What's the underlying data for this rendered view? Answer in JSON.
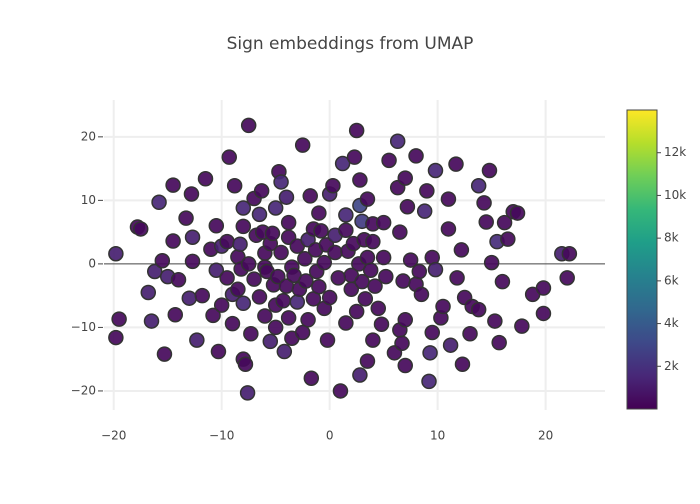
{
  "chart_data": {
    "type": "scatter",
    "title": "Sign embeddings from UMAP",
    "x": [
      -19.8,
      -19.5,
      -19.8,
      -17.8,
      -17.5,
      -16.8,
      -16.5,
      -16.2,
      -15.8,
      -15.5,
      -15.3,
      -15,
      -14.5,
      -14.5,
      -14.3,
      -14,
      -13.3,
      -13,
      -12.8,
      -12.7,
      -12.7,
      -12.3,
      -11.8,
      -11.5,
      -11,
      -10.8,
      -10.5,
      -10.5,
      -10.3,
      -10,
      -10,
      -9.5,
      -9.3,
      -9.5,
      -9,
      -9,
      -8.8,
      -8.5,
      -8.5,
      -8.3,
      -8.2,
      -8,
      -8,
      -8,
      -8,
      -7.8,
      -7.6,
      -7.5,
      -7.5,
      -7.3,
      -7,
      -7,
      -6.8,
      -6.5,
      -6.3,
      -6.5,
      -6.2,
      -6,
      -6,
      -6,
      -5.8,
      -5.5,
      -5.5,
      -5.3,
      -5.2,
      -5,
      -5,
      -5,
      -4.8,
      -4.7,
      -4.5,
      -4.5,
      -4.3,
      -4.2,
      -4,
      -4,
      -3.8,
      -3.8,
      -3.8,
      -3.5,
      -3.5,
      -3.3,
      -3,
      -3,
      -2.8,
      -2.5,
      -2.5,
      -2.3,
      -2.2,
      -2,
      -2,
      -1.8,
      -1.7,
      -1.5,
      -1.5,
      -1.3,
      -1.2,
      -1,
      -1,
      -0.8,
      -0.5,
      -0.5,
      -0.3,
      -0.2,
      0,
      0,
      0.3,
      0.5,
      0.5,
      0.8,
      1,
      1.2,
      1.5,
      1.5,
      1.5,
      1.7,
      2,
      2,
      2.2,
      2.3,
      2.5,
      2.5,
      2.7,
      2.8,
      2.8,
      2.8,
      3,
      3,
      3.2,
      3.3,
      3.5,
      3.5,
      3.5,
      3.8,
      4,
      4,
      4,
      4.2,
      4.5,
      4.8,
      5,
      5,
      5.2,
      5.5,
      6,
      6.3,
      6.3,
      6.5,
      6.5,
      6.7,
      6.8,
      7,
      7,
      7,
      7.2,
      7.5,
      8,
      8,
      8.3,
      8.5,
      8.8,
      9,
      9.2,
      9.3,
      9.5,
      9.5,
      9.8,
      9.8,
      10.3,
      10.5,
      11,
      11,
      11.2,
      11.7,
      11.8,
      12.2,
      12.3,
      12.5,
      13,
      13.2,
      13.8,
      13.8,
      14.3,
      14.5,
      14.8,
      15,
      15.3,
      15.5,
      15.7,
      16,
      16.2,
      16.5,
      17,
      17.4,
      17.8,
      18.8,
      19.8,
      19.8,
      21.5,
      22.2,
      22
    ],
    "values": [
      1.6,
      -8.7,
      -11.6,
      5.8,
      5.5,
      -4.5,
      -9,
      -1.2,
      9.7,
      0.5,
      -14.2,
      -2,
      12.4,
      3.6,
      -8,
      -2.5,
      7.2,
      -5.4,
      11,
      4.2,
      0.4,
      -12,
      -5,
      13.4,
      2.3,
      -8.1,
      6,
      -1,
      -13.8,
      2.8,
      -6.5,
      3.5,
      16.8,
      -2.2,
      -9.4,
      -4.8,
      12.3,
      -4,
      1.1,
      3.1,
      -0.8,
      8.8,
      5.9,
      -6.2,
      -15,
      -15.8,
      -20.3,
      21.8,
      0,
      -11,
      -2.4,
      10.3,
      4.5,
      7.8,
      11.5,
      -5.2,
      5,
      -8.2,
      1.7,
      -0.5,
      -1.2,
      -12.2,
      3.2,
      4.8,
      -3.3,
      -6.5,
      -10,
      8.8,
      -2,
      14.5,
      12.9,
      1.8,
      -5.8,
      -13.8,
      10.5,
      -3.5,
      6.5,
      4.2,
      -8.5,
      -0.5,
      -11.7,
      -1.8,
      2.8,
      -6,
      -4,
      18.7,
      -10.8,
      0.8,
      -2.7,
      3.8,
      -8.8,
      10.7,
      -18,
      5.5,
      -5.5,
      2.2,
      -1.2,
      -3.6,
      8,
      5.2,
      -7,
      0.2,
      3,
      -12,
      -5.3,
      11,
      12.3,
      1.8,
      4.5,
      -2.2,
      -20,
      15.8,
      7.7,
      5.3,
      -9.3,
      2,
      -4,
      -1.8,
      3.2,
      16.8,
      21,
      -7.5,
      0,
      13.2,
      -17.5,
      9.2,
      6.7,
      -2.8,
      3.8,
      -5.5,
      10.2,
      -15.3,
      1,
      -1,
      6.3,
      -12,
      3.5,
      -3.5,
      -7,
      -9.5,
      1,
      6.5,
      -2,
      16.3,
      -14,
      19.3,
      12,
      -10.4,
      5,
      -12.5,
      -2.7,
      -16,
      13.5,
      -8.8,
      9,
      0.6,
      17,
      -3.2,
      -1.2,
      -4.8,
      8.3,
      11.5,
      -18.5,
      -14,
      1,
      -10.8,
      14.7,
      -0.9,
      -8.5,
      -6.7,
      10.2,
      5.5,
      -12.8,
      15.7,
      -2.2,
      2.2,
      -15.8,
      -5.3,
      -11,
      -6.7,
      12.3,
      -7.2,
      9.6,
      6.6,
      14.7,
      0.2,
      -9,
      3.5,
      -12.4,
      -2.8,
      6.5,
      3.9,
      8.2,
      8,
      -9.8,
      -4.8,
      -7.8,
      -3.8,
      1.6,
      1.6,
      -2.2
    ],
    "color_values": [
      1200,
      300,
      300,
      300,
      300,
      1200,
      1200,
      1200,
      1500,
      300,
      300,
      1200,
      300,
      300,
      300,
      300,
      300,
      1200,
      300,
      1200,
      300,
      1200,
      300,
      300,
      300,
      300,
      300,
      1200,
      300,
      1200,
      300,
      300,
      300,
      300,
      300,
      1200,
      300,
      300,
      300,
      1200,
      300,
      1500,
      300,
      1500,
      300,
      300,
      1200,
      300,
      300,
      300,
      300,
      300,
      300,
      1500,
      300,
      300,
      300,
      300,
      300,
      300,
      300,
      1200,
      300,
      300,
      300,
      300,
      300,
      1500,
      300,
      300,
      1500,
      300,
      300,
      1200,
      1200,
      300,
      300,
      300,
      300,
      300,
      300,
      300,
      300,
      1500,
      300,
      300,
      300,
      300,
      300,
      1200,
      300,
      300,
      300,
      300,
      300,
      300,
      300,
      300,
      300,
      300,
      300,
      300,
      300,
      300,
      300,
      1200,
      300,
      300,
      1200,
      300,
      300,
      1500,
      1500,
      300,
      300,
      300,
      300,
      300,
      300,
      300,
      300,
      300,
      300,
      300,
      1200,
      3000,
      2500,
      300,
      300,
      300,
      300,
      300,
      300,
      300,
      300,
      300,
      300,
      300,
      300,
      300,
      300,
      300,
      300,
      300,
      300,
      1500,
      300,
      300,
      300,
      300,
      300,
      300,
      300,
      300,
      300,
      300,
      300,
      300,
      300,
      300,
      1500,
      300,
      1500,
      1500,
      300,
      300,
      1500,
      1200,
      300,
      300,
      300,
      300,
      1200,
      300,
      300,
      300,
      300,
      300,
      300,
      300,
      1500,
      300,
      300,
      300,
      300,
      300,
      300,
      1800,
      300,
      300,
      300,
      300,
      300,
      300,
      300,
      300,
      300,
      300,
      1200,
      300,
      300
    ],
    "colorscale": [
      "#440154",
      "#482878",
      "#3e4989",
      "#31688e",
      "#26828e",
      "#1f9e89",
      "#35b779",
      "#6ece58",
      "#b5de2b",
      "#fde725"
    ],
    "marker_line_color": "#333333",
    "clim": [
      0,
      14000
    ],
    "cticks": [
      {
        "value": 2000,
        "label": "2k"
      },
      {
        "value": 4000,
        "label": "4k"
      },
      {
        "value": 6000,
        "label": "6k"
      },
      {
        "value": 8000,
        "label": "8k"
      },
      {
        "value": 10000,
        "label": "10k"
      },
      {
        "value": 12000,
        "label": "12k"
      }
    ],
    "xlim": [
      -20.9,
      25.5
    ],
    "ylim": [
      -23,
      25.8
    ],
    "xticks": [
      {
        "value": -20,
        "label": "−20"
      },
      {
        "value": -10,
        "label": "−10"
      },
      0,
      10,
      20
    ],
    "yticks": [
      {
        "value": -20,
        "label": "−20"
      },
      {
        "value": -10,
        "label": "−10"
      },
      0,
      10,
      20
    ],
    "grid": true,
    "zeroline": true
  }
}
